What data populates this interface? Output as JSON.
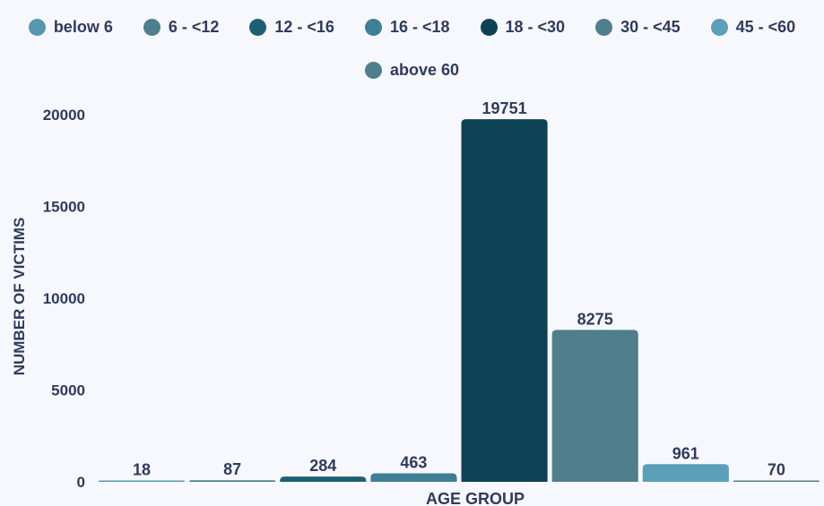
{
  "chart_data": {
    "type": "bar",
    "categories": [
      "below 6",
      "6 - <12",
      "12 - <16",
      "16 - <18",
      "18 - <30",
      "30 - <45",
      "45 - <60",
      "above 60"
    ],
    "values": [
      18,
      87,
      284,
      463,
      19751,
      8275,
      961,
      70
    ],
    "colors": [
      "#5798b0",
      "#4f7e8c",
      "#1f5f74",
      "#3d7f94",
      "#0c4254",
      "#4f7e8c",
      "#5aa0b8",
      "#4f7e8c"
    ],
    "xlabel": "AGE GROUP",
    "ylabel": "NUMBER OF VICTIMS",
    "ylim": [
      0,
      20000
    ],
    "yticks": [
      0,
      5000,
      10000,
      15000,
      20000
    ],
    "grid": false,
    "legend_position": "top"
  }
}
